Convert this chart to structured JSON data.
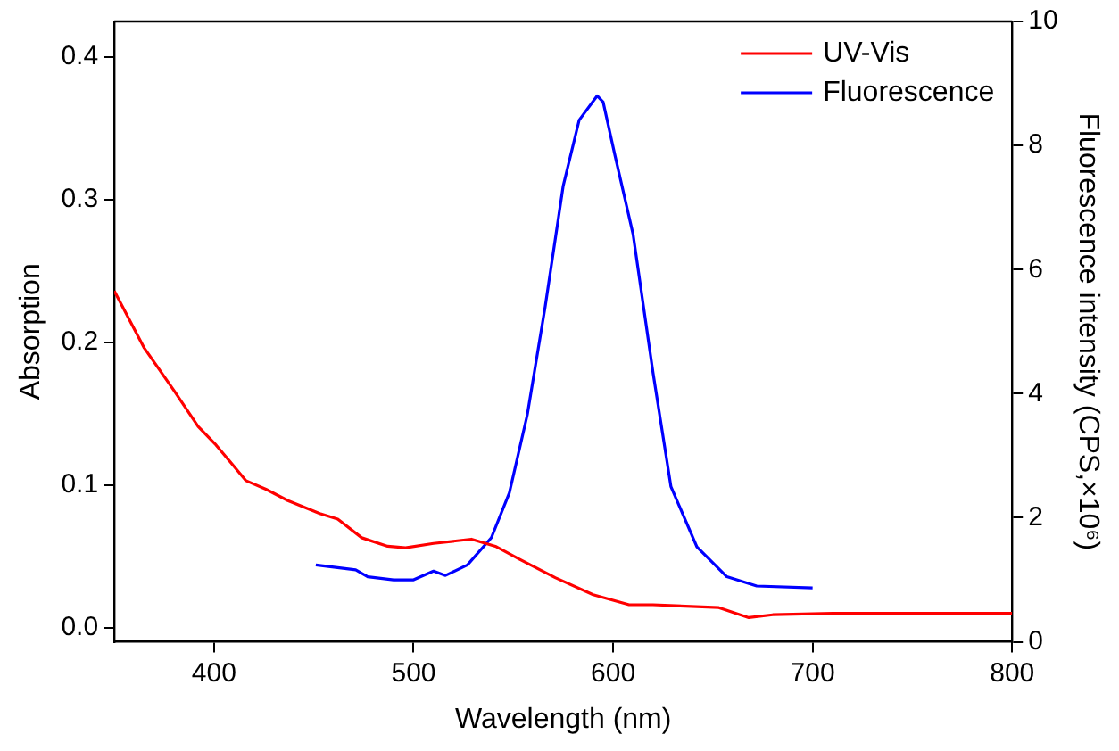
{
  "chart_data": {
    "type": "line",
    "xlabel": "Wavelength (nm)",
    "ylabel": "Absorption",
    "y2label": "Fluorescence intensity (CPS,×10⁶)",
    "xlim": [
      350,
      800
    ],
    "xticks": [
      400,
      500,
      600,
      700,
      800
    ],
    "ylim": [
      -0.01,
      0.425
    ],
    "yticks": [
      {
        "value": 0,
        "label": "0.0"
      },
      {
        "value": 0.1,
        "label": "0.1"
      },
      {
        "value": 0.2,
        "label": "0.2"
      },
      {
        "value": 0.3,
        "label": "0.3"
      },
      {
        "value": 0.4,
        "label": "0.4"
      }
    ],
    "y2lim": [
      0,
      10
    ],
    "y2ticks": [
      0,
      2,
      4,
      6,
      8,
      10
    ],
    "legend": "top right",
    "grid": false,
    "marker": "none",
    "line_style": "solid",
    "series": [
      {
        "name": "UV-Vis",
        "color": "#ff0000",
        "x": [
          350,
          365,
          380,
          392,
          401,
          416,
          426,
          437,
          453,
          462,
          474,
          487,
          496,
          510,
          529,
          541,
          553,
          571,
          590,
          608,
          620,
          653,
          668,
          680,
          710,
          800
        ],
        "values": [
          0.236,
          0.196,
          0.166,
          0.141,
          0.128,
          0.103,
          0.097,
          0.089,
          0.08,
          0.076,
          0.063,
          0.057,
          0.056,
          0.059,
          0.062,
          0.057,
          0.048,
          0.035,
          0.023,
          0.016,
          0.016,
          0.014,
          0.007,
          0.009,
          0.01,
          0.01
        ]
      },
      {
        "name": "Fluorescence",
        "color": "#0000ff",
        "axis": "y2",
        "x": [
          451,
          471,
          477,
          490,
          500,
          510,
          516,
          527,
          539,
          548,
          557,
          566,
          575,
          583,
          592,
          595,
          601,
          610,
          620,
          629,
          642,
          657,
          672,
          700
        ],
        "values": [
          1.24,
          1.16,
          1.05,
          1.0,
          1.0,
          1.14,
          1.07,
          1.24,
          1.68,
          2.4,
          3.66,
          5.41,
          7.35,
          8.41,
          8.8,
          8.7,
          7.83,
          6.57,
          4.34,
          2.5,
          1.53,
          1.05,
          0.9,
          0.87
        ]
      }
    ]
  }
}
